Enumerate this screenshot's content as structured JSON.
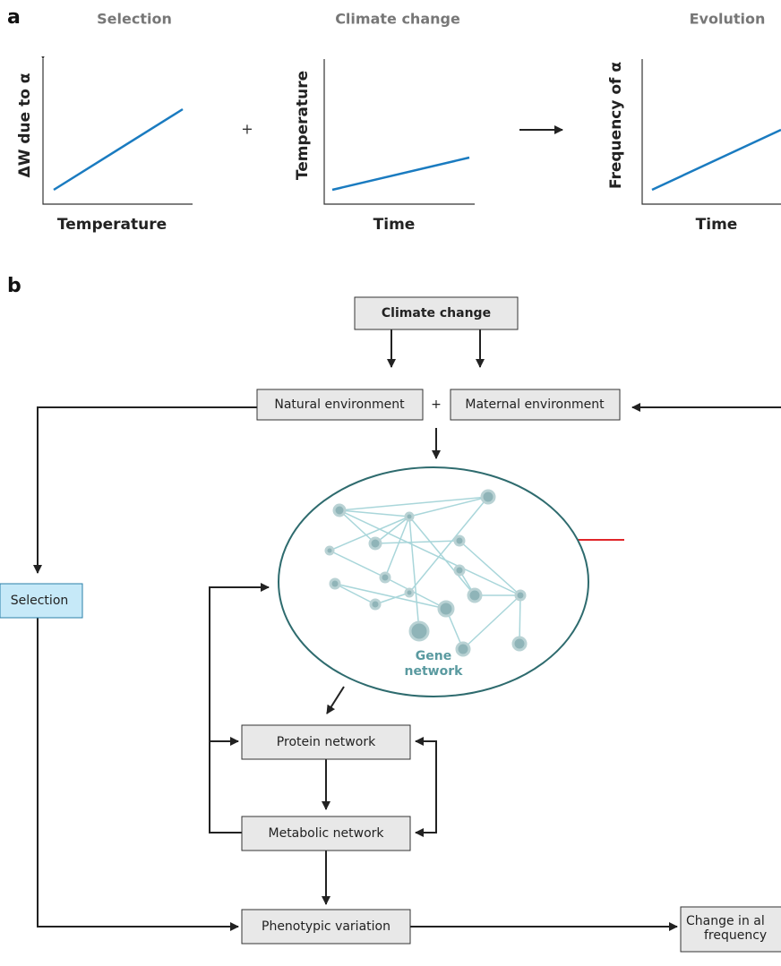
{
  "panel_a": {
    "label": "a",
    "operator": "+",
    "plots": [
      {
        "title": "Selection",
        "y_label": "ΔW due to α",
        "x_label": "Temperature"
      },
      {
        "title": "Climate change",
        "y_label": "Temperature",
        "x_label": "Time"
      },
      {
        "title": "Evolution",
        "y_label": "Frequency of α",
        "x_label": "Time"
      }
    ]
  },
  "panel_b": {
    "label": "b",
    "operator": "+",
    "nodes": [
      "Climate change",
      "Natural environment",
      "Maternal environment",
      "Selection",
      "Protein network",
      "Metabolic network",
      "Phenotypic variation"
    ],
    "gene_network": [
      "Gene",
      "network"
    ],
    "change_box": [
      "Change in al",
      "frequency"
    ]
  }
}
